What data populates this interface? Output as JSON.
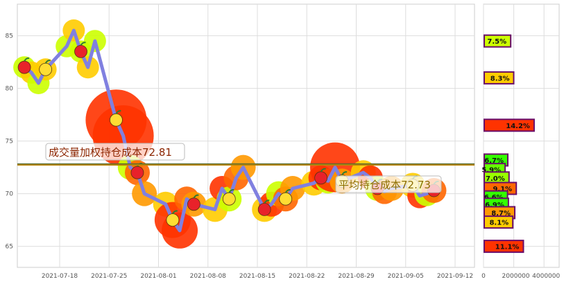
{
  "chart_data": [
    {
      "type": "line",
      "title": "",
      "xlabel": "",
      "ylabel": "",
      "x": [
        "2021-07-13",
        "2021-07-14",
        "2021-07-15",
        "2021-07-16",
        "2021-07-19",
        "2021-07-20",
        "2021-07-21",
        "2021-07-22",
        "2021-07-23",
        "2021-07-26",
        "2021-07-27",
        "2021-07-28",
        "2021-07-29",
        "2021-07-30",
        "2021-08-02",
        "2021-08-03",
        "2021-08-04",
        "2021-08-05",
        "2021-08-06",
        "2021-08-09",
        "2021-08-10",
        "2021-08-11",
        "2021-08-12",
        "2021-08-13",
        "2021-08-16",
        "2021-08-17",
        "2021-08-18",
        "2021-08-19",
        "2021-08-20",
        "2021-08-23",
        "2021-08-24",
        "2021-08-25",
        "2021-08-26",
        "2021-08-27",
        "2021-08-30",
        "2021-08-31",
        "2021-09-01",
        "2021-09-02",
        "2021-09-03",
        "2021-09-06",
        "2021-09-07",
        "2021-09-08",
        "2021-09-09"
      ],
      "y": [
        82.0,
        81.5,
        80.5,
        81.8,
        84.0,
        85.5,
        83.5,
        82.0,
        84.5,
        77.0,
        75.5,
        72.5,
        72.0,
        70.0,
        69.0,
        67.5,
        66.5,
        69.5,
        69.0,
        68.5,
        70.5,
        69.5,
        71.5,
        72.5,
        68.5,
        69.0,
        70.0,
        69.5,
        70.5,
        71.0,
        71.5,
        71.2,
        72.5,
        71.2,
        72.0,
        71.5,
        70.5,
        70.2,
        70.5,
        70.8,
        69.8,
        70.0,
        70.3
      ],
      "xticks": [
        "2021-07-18",
        "2021-07-25",
        "2021-08-01",
        "2021-08-08",
        "2021-08-15",
        "2021-08-22",
        "2021-08-29",
        "2021-09-05",
        "2021-09-12"
      ],
      "yticks": [
        65,
        70,
        75,
        80,
        85
      ],
      "ylim": [
        63,
        88
      ],
      "reference_lines": [
        {
          "label": "成交量加权持仓成本72.81",
          "value": 72.81,
          "color": "#556b2f"
        },
        {
          "label": "平均持仓成本72.73",
          "value": 72.73,
          "color": "#b8860b"
        }
      ],
      "grid": true
    },
    {
      "type": "bar",
      "orientation": "horizontal",
      "title": "",
      "categories": [
        84.5,
        81.0,
        76.5,
        73.2,
        72.3,
        71.5,
        70.5,
        69.7,
        69.0,
        68.2,
        67.3,
        65.0
      ],
      "values": [
        1750000,
        1950000,
        3300000,
        1560000,
        1380000,
        1640000,
        2120000,
        1540000,
        1600000,
        2020000,
        1890000,
        2590000
      ],
      "labels": [
        "7.5%",
        "8.3%",
        "14.2%",
        "6.7%",
        "5.9%",
        "7.0%",
        "9.1%",
        "6.6%",
        "6.9%",
        "8.7%",
        "8.1%",
        "11.1%"
      ],
      "colors": [
        "#ccff00",
        "#ffcc00",
        "#ff3300",
        "#33ff00",
        "#66ff00",
        "#99ff00",
        "#ff6600",
        "#33ff00",
        "#33ff00",
        "#ff9900",
        "#ffcc00",
        "#ff3300"
      ],
      "xticks": [
        "0",
        "2000000",
        "4000000"
      ],
      "xlim": [
        0,
        5000000
      ],
      "ylim": [
        63,
        88
      ],
      "grid": true
    }
  ]
}
